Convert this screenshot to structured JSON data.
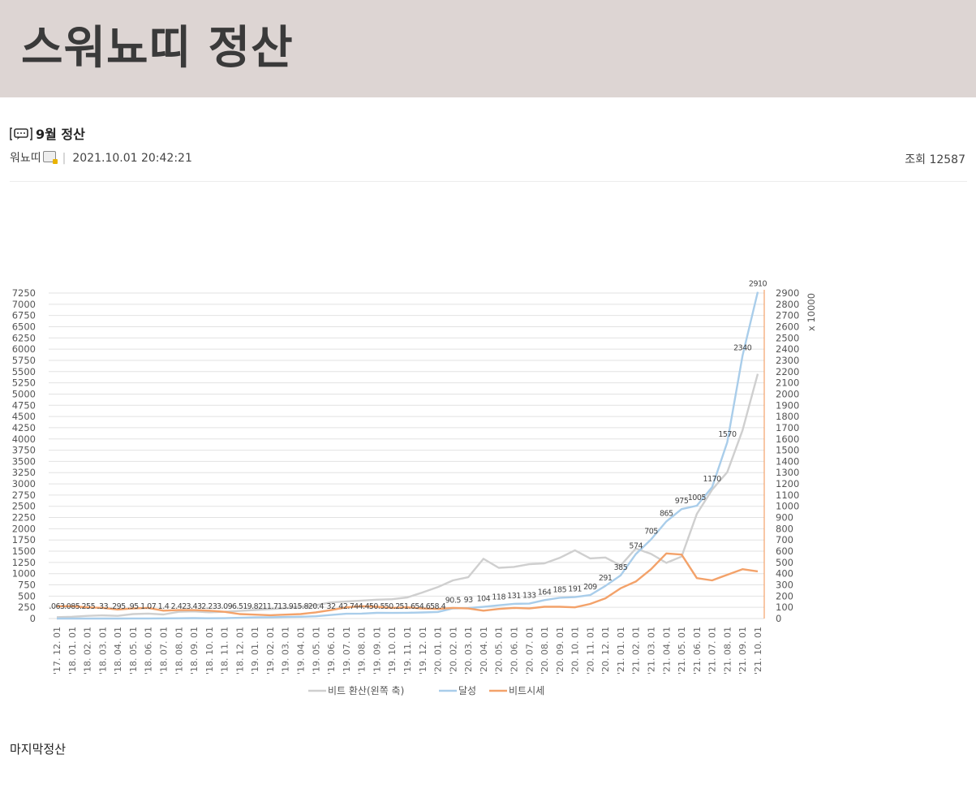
{
  "banner": {
    "title": "스워뇨띠 정산"
  },
  "post": {
    "title": "9월 정산",
    "author": "워뇨띠",
    "datetime": "2021.10.01 20:42:21",
    "views_label": "조회",
    "views": "12587",
    "body": "마지막정산"
  },
  "colors": {
    "conversion": "#cfcfcf",
    "achievement": "#a9cdea",
    "btc_price": "#f3a26a",
    "grid": "#e2e2e2"
  },
  "chart_data": {
    "type": "line",
    "right_axis_unit": "x 10000",
    "left_ylim": [
      0,
      7250
    ],
    "left_ticks": [
      0,
      250,
      500,
      750,
      1000,
      1250,
      1500,
      1750,
      2000,
      2250,
      2500,
      2750,
      3000,
      3250,
      3500,
      3750,
      4000,
      4250,
      4500,
      4750,
      5000,
      5250,
      5500,
      5750,
      6000,
      6250,
      6500,
      6750,
      7000,
      7250
    ],
    "right_ylim": [
      0,
      2900
    ],
    "right_ticks": [
      0,
      100,
      200,
      300,
      400,
      500,
      600,
      700,
      800,
      900,
      1000,
      1100,
      1200,
      1300,
      1400,
      1500,
      1600,
      1700,
      1800,
      1900,
      2000,
      2100,
      2200,
      2300,
      2400,
      2500,
      2600,
      2700,
      2800,
      2900
    ],
    "categories": [
      "'17. 12. 01",
      "'18. 01. 01",
      "'18. 02. 01",
      "'18. 03. 01",
      "'18. 04. 01",
      "'18. 05. 01",
      "'18. 06. 01",
      "'18. 07. 01",
      "'18. 08. 01",
      "'18. 09. 01",
      "'18. 10. 01",
      "'18. 11. 01",
      "'18. 12. 01",
      "'19. 01. 01",
      "'19. 02. 01",
      "'19. 03. 01",
      "'19. 04. 01",
      "'19. 05. 01",
      "'19. 06. 01",
      "'19. 07. 01",
      "'19. 08. 01",
      "'19. 09. 01",
      "'19. 10. 01",
      "'19. 11. 01",
      "'19. 12. 01",
      "'20. 01. 01",
      "'20. 02. 01",
      "'20. 03. 01",
      "'20. 04. 01",
      "'20. 05. 01",
      "'20. 06. 01",
      "'20. 07. 01",
      "'20. 08. 01",
      "'20. 09. 01",
      "'20. 10. 01",
      "'20. 11. 01",
      "'20. 12. 01",
      "'21. 01. 01",
      "'21. 02. 01",
      "'21. 03. 01",
      "'21. 04. 01",
      "'21. 05. 01",
      "'21. 06. 01",
      "'21. 07. 01",
      "'21. 08. 01",
      "'21. 09. 01",
      "'21. 10. 01"
    ],
    "labels": [
      ".063",
      ".085",
      ".255",
      ".33",
      ".295",
      ".95",
      "1.07",
      "1.4",
      "2.42",
      "3.43",
      "2.23",
      "3.09",
      "6.51",
      "9.82",
      "11.7",
      "13.9",
      "15.8",
      "20.4",
      "32",
      "42.7",
      "44.4",
      "50.5",
      "50.2",
      "51.6",
      "54.6",
      "58.4",
      "90.5",
      "93",
      "104",
      "118",
      "131",
      "133",
      "164",
      "185",
      "191",
      "209",
      "291",
      "385",
      "574",
      "705",
      "865",
      "975",
      "1005",
      "1170",
      "1570",
      "2340",
      "2910"
    ],
    "series": [
      {
        "name": "비트 환산(왼쪽 축)",
        "axis": "left",
        "values": [
          30,
          40,
          60,
          70,
          60,
          100,
          110,
          90,
          150,
          160,
          140,
          150,
          170,
          190,
          210,
          230,
          260,
          300,
          360,
          380,
          400,
          420,
          430,
          470,
          580,
          700,
          850,
          920,
          1330,
          1130,
          1150,
          1210,
          1230,
          1350,
          1520,
          1340,
          1360,
          1180,
          1560,
          1440,
          1240,
          1380,
          2330,
          2870,
          3260,
          4190,
          5450
        ]
      },
      {
        "name": "달성",
        "axis": "right",
        "values": [
          0.063,
          0.085,
          0.255,
          0.33,
          0.295,
          0.95,
          1.07,
          1.4,
          2.42,
          3.43,
          2.23,
          3.09,
          6.51,
          9.82,
          11.7,
          13.9,
          15.8,
          20.4,
          32,
          42.7,
          44.4,
          50.5,
          50.2,
          51.6,
          54.6,
          58.4,
          90.5,
          93,
          104,
          118,
          131,
          133,
          164,
          185,
          191,
          209,
          291,
          385,
          574,
          705,
          865,
          975,
          1005,
          1170,
          1570,
          2340,
          2910
        ]
      },
      {
        "name": "비트시세",
        "axis": "right",
        "values": [
          110,
          110,
          100,
          95,
          80,
          90,
          95,
          70,
          75,
          75,
          70,
          60,
          40,
          35,
          30,
          35,
          40,
          55,
          75,
          100,
          110,
          105,
          95,
          100,
          90,
          85,
          95,
          90,
          70,
          85,
          95,
          90,
          105,
          105,
          100,
          130,
          180,
          270,
          330,
          440,
          580,
          570,
          360,
          340,
          390,
          440,
          420
        ]
      }
    ]
  }
}
